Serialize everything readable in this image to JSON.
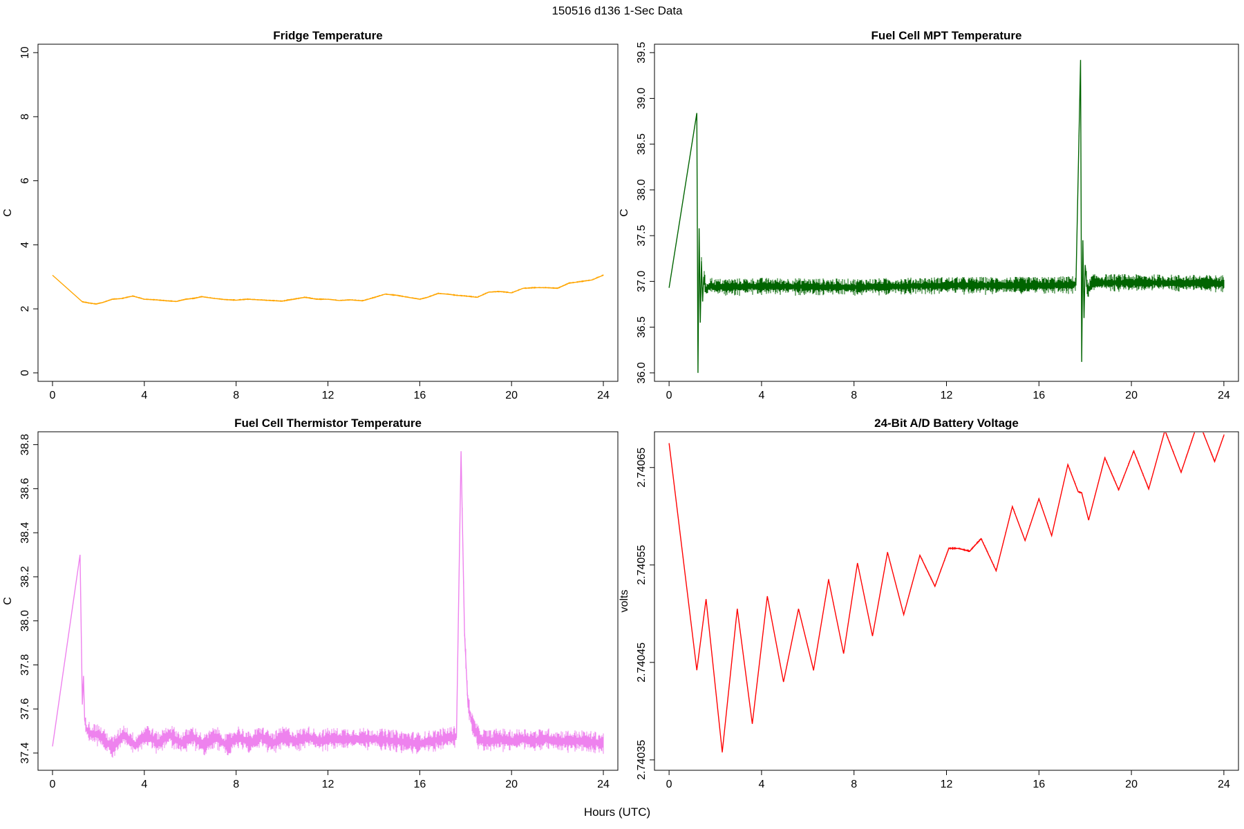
{
  "figure": {
    "suptitle": "150516   d136   1-Sec Data",
    "xlabel": "Hours (UTC)"
  },
  "chart_data": [
    {
      "type": "line",
      "title": "Fridge Temperature",
      "xlabel": "",
      "ylabel": "C",
      "xlim": [
        0,
        24
      ],
      "ylim": [
        0,
        10
      ],
      "xticks": [
        "0",
        "4",
        "8",
        "12",
        "16",
        "20",
        "24"
      ],
      "yticks": [
        "0",
        "2",
        "4",
        "6",
        "8",
        "10"
      ],
      "grid": false,
      "color": "#FFA500",
      "noise": 0.03,
      "series": [
        {
          "x": [
            0,
            1.3,
            1.6,
            1.9,
            2.2,
            2.6,
            3.0,
            3.5,
            4.0,
            4.5,
            5.0,
            5.4,
            5.8,
            6.2,
            6.5,
            7.0,
            7.5,
            8.0,
            8.5,
            9.0,
            9.5,
            10.0,
            10.5,
            11.0,
            11.5,
            12.0,
            12.5,
            13.0,
            13.5,
            14.0,
            14.5,
            15.0,
            15.5,
            16.0,
            16.3,
            16.8,
            17.2,
            17.6,
            18.0,
            18.5,
            19.0,
            19.5,
            20.0,
            20.5,
            21.0,
            21.5,
            22.0,
            22.5,
            23.0,
            23.5,
            24.0
          ],
          "y": [
            3.05,
            2.22,
            2.18,
            2.15,
            2.2,
            2.3,
            2.32,
            2.4,
            2.3,
            2.28,
            2.25,
            2.23,
            2.3,
            2.33,
            2.38,
            2.33,
            2.29,
            2.27,
            2.3,
            2.28,
            2.26,
            2.24,
            2.3,
            2.36,
            2.3,
            2.3,
            2.26,
            2.28,
            2.25,
            2.35,
            2.46,
            2.42,
            2.36,
            2.3,
            2.35,
            2.48,
            2.46,
            2.42,
            2.4,
            2.36,
            2.52,
            2.54,
            2.5,
            2.64,
            2.66,
            2.66,
            2.64,
            2.8,
            2.85,
            2.9,
            3.05
          ]
        }
      ]
    },
    {
      "type": "line",
      "title": "Fuel Cell MPT Temperature",
      "xlabel": "",
      "ylabel": "C",
      "xlim": [
        0,
        24
      ],
      "ylim": [
        36.0,
        39.5
      ],
      "xticks": [
        "0",
        "4",
        "8",
        "12",
        "16",
        "20",
        "24"
      ],
      "yticks": [
        "36.0",
        "36.5",
        "37.0",
        "37.5",
        "38.0",
        "38.5",
        "39.0",
        "39.5"
      ],
      "grid": false,
      "color": "#006400",
      "noise": 0.1,
      "series": [
        {
          "x": [
            0,
            1.2,
            1.25,
            1.3,
            1.35,
            1.4,
            1.45,
            1.5,
            1.6,
            1.8,
            2.0,
            4.0,
            8.0,
            12.0,
            16.0,
            17.6,
            17.8,
            17.85,
            17.9,
            17.95,
            18.0,
            18.1,
            18.3,
            20.0,
            24.0
          ],
          "y": [
            36.93,
            38.84,
            36.0,
            37.58,
            36.55,
            37.22,
            36.78,
            37.05,
            36.9,
            36.95,
            36.93,
            36.94,
            36.93,
            36.95,
            36.95,
            36.96,
            39.42,
            36.12,
            37.45,
            36.6,
            37.18,
            36.88,
            36.98,
            36.98,
            36.97
          ]
        }
      ]
    },
    {
      "type": "line",
      "title": "Fuel Cell Thermistor Temperature",
      "xlabel": "",
      "ylabel": "C",
      "xlim": [
        0,
        24
      ],
      "ylim": [
        37.36,
        38.82
      ],
      "xticks": [
        "0",
        "4",
        "8",
        "12",
        "16",
        "20",
        "24"
      ],
      "yticks": [
        "37.4",
        "37.6",
        "37.8",
        "38.0",
        "38.2",
        "38.4",
        "38.6",
        "38.8"
      ],
      "grid": false,
      "color": "#EE82EE",
      "noise": 0.055,
      "series": [
        {
          "x": [
            0,
            1.2,
            1.3,
            1.35,
            1.4,
            1.5,
            1.7,
            2.0,
            2.6,
            3.1,
            3.6,
            4.1,
            4.6,
            5.1,
            5.6,
            6.1,
            6.6,
            7.1,
            7.6,
            8.1,
            8.6,
            9.1,
            9.6,
            10.1,
            10.6,
            11.1,
            11.6,
            12.0,
            13.0,
            14.0,
            15.0,
            16.0,
            17.0,
            17.6,
            17.8,
            17.95,
            18.1,
            18.3,
            18.6,
            19.0,
            19.5,
            20.0,
            20.5,
            21.0,
            21.5,
            22.0,
            23.0,
            24.0
          ],
          "y": [
            37.43,
            38.3,
            37.62,
            37.75,
            37.55,
            37.5,
            37.48,
            37.48,
            37.42,
            37.48,
            37.43,
            37.48,
            37.44,
            37.48,
            37.44,
            37.47,
            37.43,
            37.47,
            37.43,
            37.47,
            37.44,
            37.47,
            37.44,
            37.47,
            37.45,
            37.47,
            37.45,
            37.46,
            37.46,
            37.46,
            37.45,
            37.44,
            37.46,
            37.47,
            38.77,
            37.95,
            37.62,
            37.52,
            37.46,
            37.45,
            37.46,
            37.45,
            37.46,
            37.45,
            37.46,
            37.45,
            37.45,
            37.44
          ]
        }
      ]
    },
    {
      "type": "line",
      "title": "24-Bit A/D Battery Voltage",
      "xlabel": "",
      "ylabel": "volts",
      "xlim": [
        0,
        24
      ],
      "ylim": [
        2.740348,
        2.740678
      ],
      "xticks": [
        "0",
        "4",
        "8",
        "12",
        "16",
        "20",
        "24"
      ],
      "yticks": [
        "2.74035",
        "2.74045",
        "2.74055",
        "2.74065"
      ],
      "grid": false,
      "color": "#FF0000",
      "noise": 1.5e-06,
      "series": [
        {
          "x": [
            0,
            1.2,
            1.6,
            2.3,
            2.95,
            3.6,
            4.25,
            4.95,
            5.6,
            6.25,
            6.9,
            7.55,
            8.15,
            8.8,
            9.45,
            10.15,
            10.85,
            11.5,
            12.1,
            12.5,
            13.0,
            13.5,
            14.15,
            14.85,
            15.4,
            16.0,
            16.55,
            17.25,
            17.7,
            17.85,
            18.15,
            18.85,
            19.45,
            20.1,
            20.75,
            21.45,
            22.15,
            22.9,
            23.6,
            24.0
          ],
          "y": [
            2.740675,
            2.740442,
            2.740515,
            2.740358,
            2.740505,
            2.740387,
            2.740518,
            2.74043,
            2.740505,
            2.740442,
            2.740535,
            2.740459,
            2.740552,
            2.740477,
            2.740563,
            2.740499,
            2.74056,
            2.740528,
            2.740567,
            2.740567,
            2.740564,
            2.740577,
            2.740544,
            2.74061,
            2.740575,
            2.740618,
            2.74058,
            2.740653,
            2.740625,
            2.740624,
            2.740596,
            2.74066,
            2.740627,
            2.740667,
            2.740628,
            2.740688,
            2.740645,
            2.740698,
            2.740656,
            2.740683
          ]
        }
      ]
    }
  ]
}
